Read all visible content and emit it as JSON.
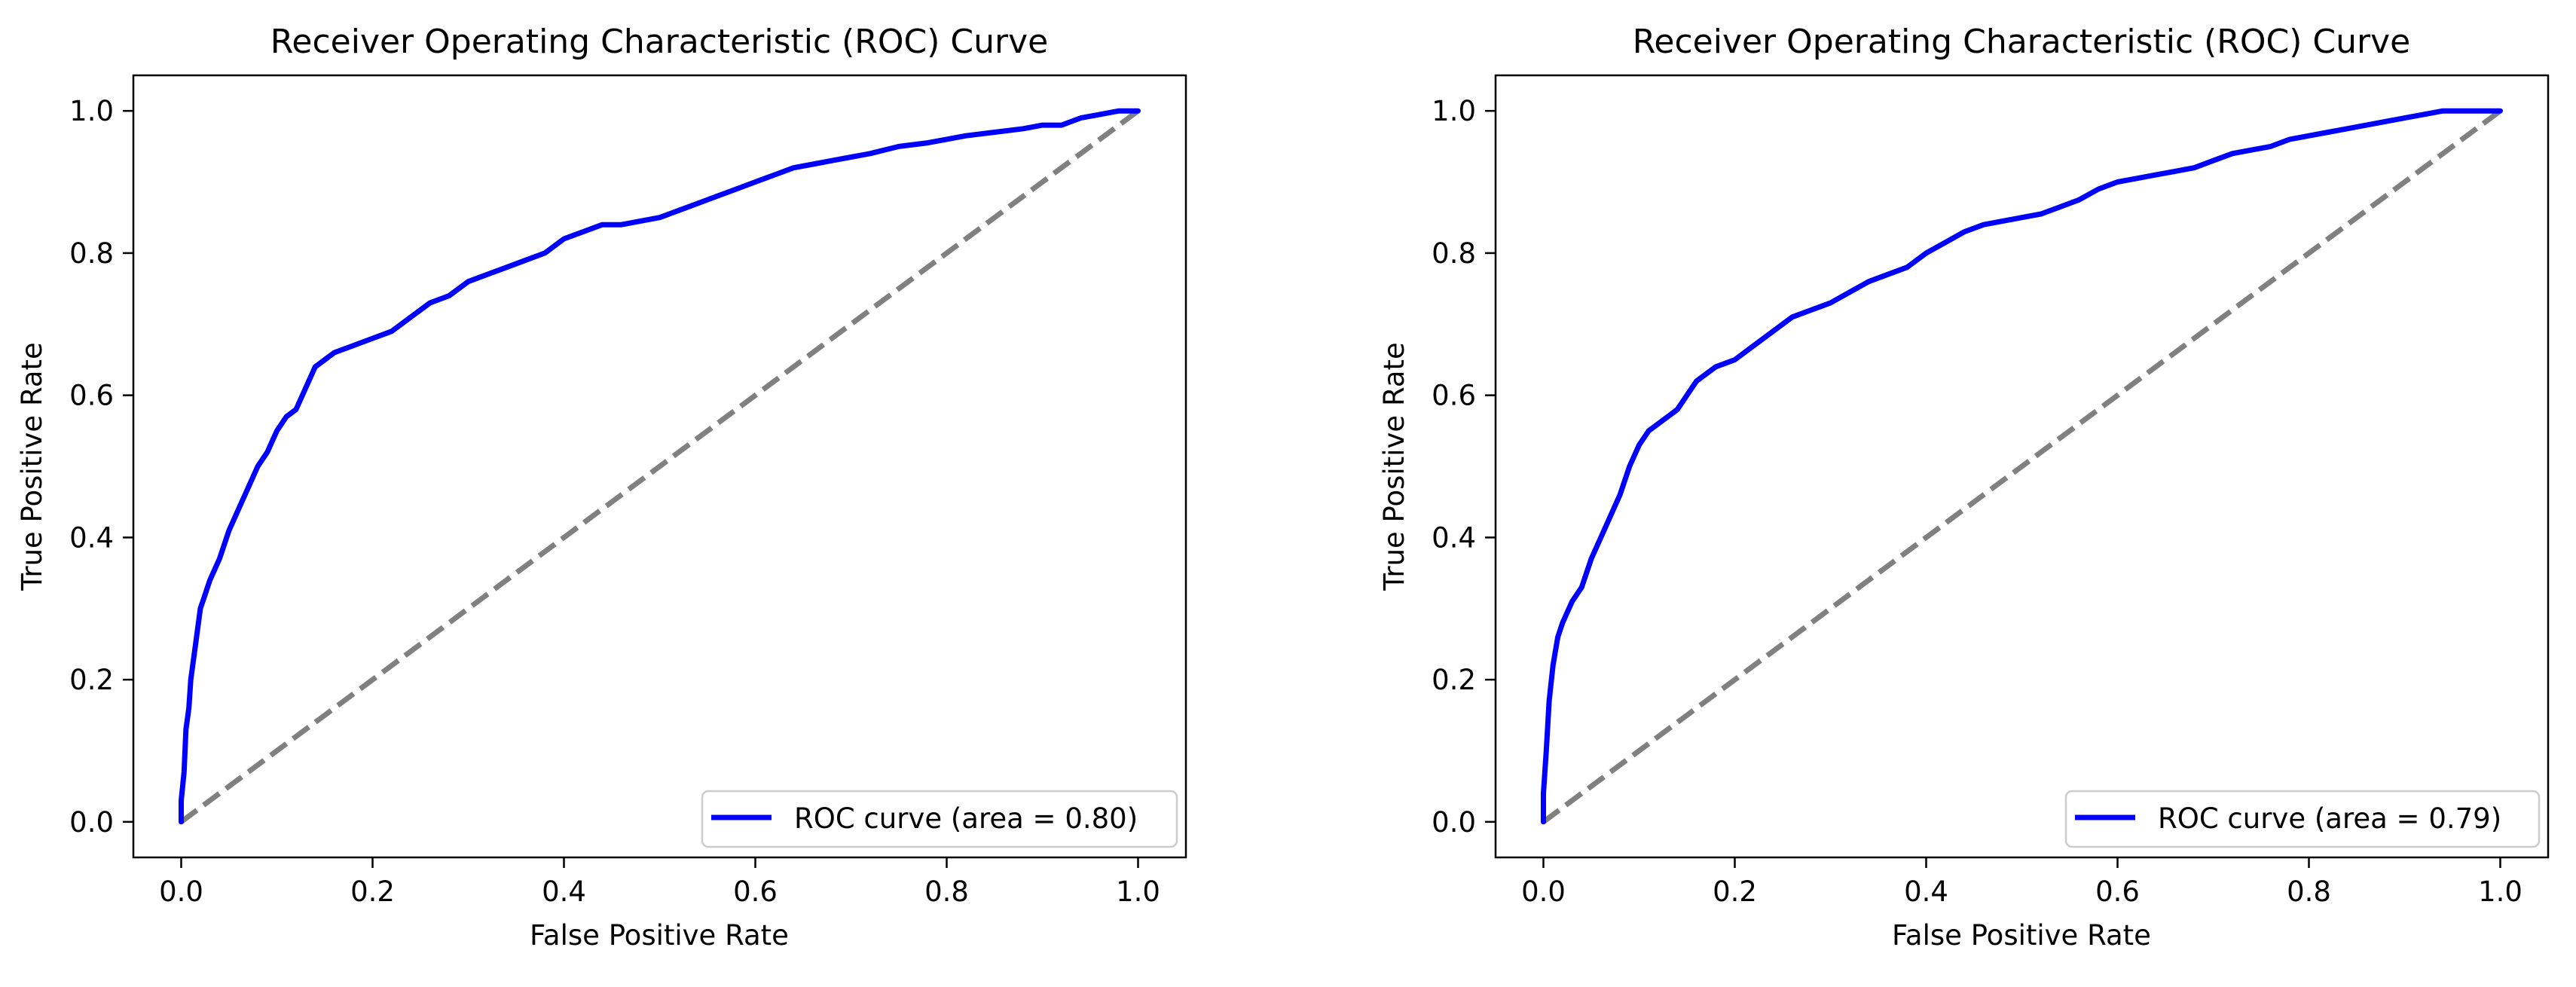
{
  "colors": {
    "roc_line": "#0000ff",
    "diagonal": "#808080",
    "axes": "#000000",
    "background": "#ffffff",
    "legend_border": "#cccccc"
  },
  "chart_data": [
    {
      "type": "line",
      "title": "Receiver Operating Characteristic (ROC) Curve",
      "xlabel": "False Positive Rate",
      "ylabel": "True Positive Rate",
      "xlim": [
        -0.05,
        1.05
      ],
      "ylim": [
        -0.05,
        1.05
      ],
      "xticks": [
        0.0,
        0.2,
        0.4,
        0.6,
        0.8,
        1.0
      ],
      "xtick_labels": [
        "0.0",
        "0.2",
        "0.4",
        "0.6",
        "0.8",
        "1.0"
      ],
      "yticks": [
        0.0,
        0.2,
        0.4,
        0.6,
        0.8,
        1.0
      ],
      "ytick_labels": [
        "0.0",
        "0.2",
        "0.4",
        "0.6",
        "0.8",
        "1.0"
      ],
      "grid": false,
      "legend_position": "lower-right",
      "series": [
        {
          "name": "ROC curve (area = 0.80)",
          "style": "solid",
          "x": [
            0.0,
            0.0,
            0.003,
            0.005,
            0.008,
            0.01,
            0.015,
            0.02,
            0.025,
            0.03,
            0.04,
            0.05,
            0.06,
            0.07,
            0.08,
            0.09,
            0.1,
            0.11,
            0.12,
            0.13,
            0.14,
            0.15,
            0.16,
            0.18,
            0.2,
            0.22,
            0.24,
            0.26,
            0.28,
            0.3,
            0.32,
            0.34,
            0.36,
            0.38,
            0.4,
            0.42,
            0.44,
            0.46,
            0.48,
            0.5,
            0.52,
            0.54,
            0.56,
            0.58,
            0.6,
            0.62,
            0.64,
            0.66,
            0.68,
            0.7,
            0.72,
            0.75,
            0.78,
            0.8,
            0.82,
            0.85,
            0.88,
            0.9,
            0.92,
            0.94,
            0.96,
            0.98,
            1.0
          ],
          "y": [
            0.0,
            0.03,
            0.07,
            0.13,
            0.16,
            0.2,
            0.25,
            0.3,
            0.32,
            0.34,
            0.37,
            0.41,
            0.44,
            0.47,
            0.5,
            0.52,
            0.55,
            0.57,
            0.58,
            0.61,
            0.64,
            0.65,
            0.66,
            0.67,
            0.68,
            0.69,
            0.71,
            0.73,
            0.74,
            0.76,
            0.77,
            0.78,
            0.79,
            0.8,
            0.82,
            0.83,
            0.84,
            0.84,
            0.845,
            0.85,
            0.86,
            0.87,
            0.88,
            0.89,
            0.9,
            0.91,
            0.92,
            0.925,
            0.93,
            0.935,
            0.94,
            0.95,
            0.955,
            0.96,
            0.965,
            0.97,
            0.975,
            0.98,
            0.98,
            0.99,
            0.995,
            1.0,
            1.0
          ]
        },
        {
          "name": "diagonal",
          "style": "dashed",
          "x": [
            0.0,
            1.0
          ],
          "y": [
            0.0,
            1.0
          ]
        }
      ]
    },
    {
      "type": "line",
      "title": "Receiver Operating Characteristic (ROC) Curve",
      "xlabel": "False Positive Rate",
      "ylabel": "True Positive Rate",
      "xlim": [
        -0.05,
        1.05
      ],
      "ylim": [
        -0.05,
        1.05
      ],
      "xticks": [
        0.0,
        0.2,
        0.4,
        0.6,
        0.8,
        1.0
      ],
      "xtick_labels": [
        "0.0",
        "0.2",
        "0.4",
        "0.6",
        "0.8",
        "1.0"
      ],
      "yticks": [
        0.0,
        0.2,
        0.4,
        0.6,
        0.8,
        1.0
      ],
      "ytick_labels": [
        "0.0",
        "0.2",
        "0.4",
        "0.6",
        "0.8",
        "1.0"
      ],
      "grid": false,
      "legend_position": "lower-right",
      "series": [
        {
          "name": "ROC curve (area = 0.79)",
          "style": "solid",
          "x": [
            0.0,
            0.0,
            0.003,
            0.006,
            0.01,
            0.015,
            0.02,
            0.03,
            0.04,
            0.05,
            0.06,
            0.07,
            0.08,
            0.09,
            0.1,
            0.11,
            0.12,
            0.13,
            0.14,
            0.15,
            0.16,
            0.18,
            0.2,
            0.22,
            0.24,
            0.26,
            0.28,
            0.3,
            0.32,
            0.34,
            0.36,
            0.38,
            0.4,
            0.42,
            0.44,
            0.46,
            0.48,
            0.5,
            0.52,
            0.54,
            0.56,
            0.58,
            0.6,
            0.62,
            0.64,
            0.66,
            0.68,
            0.7,
            0.72,
            0.74,
            0.76,
            0.78,
            0.8,
            0.82,
            0.84,
            0.86,
            0.88,
            0.9,
            0.92,
            0.94,
            0.96,
            1.0
          ],
          "y": [
            0.0,
            0.04,
            0.1,
            0.17,
            0.22,
            0.26,
            0.28,
            0.31,
            0.33,
            0.37,
            0.4,
            0.43,
            0.46,
            0.5,
            0.53,
            0.55,
            0.56,
            0.57,
            0.58,
            0.6,
            0.62,
            0.64,
            0.65,
            0.67,
            0.69,
            0.71,
            0.72,
            0.73,
            0.745,
            0.76,
            0.77,
            0.78,
            0.8,
            0.815,
            0.83,
            0.84,
            0.845,
            0.85,
            0.855,
            0.865,
            0.875,
            0.89,
            0.9,
            0.905,
            0.91,
            0.915,
            0.92,
            0.93,
            0.94,
            0.945,
            0.95,
            0.96,
            0.965,
            0.97,
            0.975,
            0.98,
            0.985,
            0.99,
            0.995,
            1.0,
            1.0,
            1.0
          ]
        },
        {
          "name": "diagonal",
          "style": "dashed",
          "x": [
            0.0,
            1.0
          ],
          "y": [
            0.0,
            1.0
          ]
        }
      ]
    }
  ]
}
